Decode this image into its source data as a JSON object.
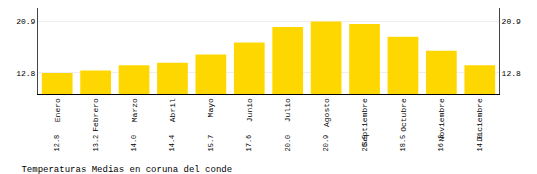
{
  "chart_data": {
    "type": "bar",
    "title": "Temperaturas Medias en coruna del conde",
    "categories": [
      "Enero",
      "Febrero",
      "Marzo",
      "Abril",
      "Mayo",
      "Junio",
      "Julio",
      "Agosto",
      "Septiembre",
      "Octubre",
      "Noviembre",
      "Diciembre"
    ],
    "values": [
      12.8,
      13.2,
      14.0,
      14.4,
      15.7,
      17.6,
      20.0,
      20.9,
      20.5,
      18.5,
      16.3,
      14.0
    ],
    "value_labels": [
      "12.8",
      "13.2",
      "14.0",
      "14.4",
      "15.7",
      "17.6",
      "20.0",
      "20.9",
      "20.5",
      "18.5",
      "16.3",
      "14.0"
    ],
    "color": "#FFD700",
    "ylim": [
      9.5,
      23.0
    ],
    "yticks": [
      12.8,
      20.9
    ],
    "y2lim": [
      9.5,
      23.0
    ],
    "y2ticks": [
      12.8,
      20.9
    ],
    "grid": true,
    "data_labels": true
  }
}
